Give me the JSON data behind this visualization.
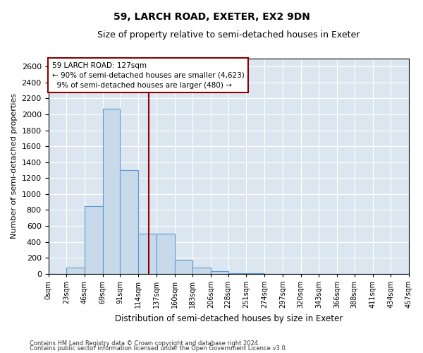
{
  "title": "59, LARCH ROAD, EXETER, EX2 9DN",
  "subtitle": "Size of property relative to semi-detached houses in Exeter",
  "xlabel": "Distribution of semi-detached houses by size in Exeter",
  "ylabel": "Number of semi-detached properties",
  "property_size": 127,
  "property_label": "59 LARCH ROAD: 127sqm",
  "pct_smaller": 90,
  "pct_larger": 9,
  "count_smaller": 4623,
  "count_larger": 480,
  "bin_edges": [
    0,
    23,
    46,
    69,
    91,
    114,
    137,
    160,
    183,
    206,
    228,
    251,
    274,
    297,
    320,
    343,
    366,
    388,
    411,
    434,
    457
  ],
  "bin_counts": [
    0,
    75,
    850,
    2075,
    1300,
    500,
    500,
    175,
    75,
    30,
    10,
    5,
    0,
    0,
    0,
    0,
    0,
    0,
    0,
    0
  ],
  "bar_facecolor": "#c8d9ea",
  "bar_edgecolor": "#5b9bd5",
  "vline_color": "#8b0000",
  "grid_color": "#ffffff",
  "bg_color": "#dce6f1",
  "ylim": [
    0,
    2700
  ],
  "yticks": [
    0,
    200,
    400,
    600,
    800,
    1000,
    1200,
    1400,
    1600,
    1800,
    2000,
    2200,
    2400,
    2600
  ],
  "footer1": "Contains HM Land Registry data © Crown copyright and database right 2024.",
  "footer2": "Contains public sector information licensed under the Open Government Licence v3.0."
}
